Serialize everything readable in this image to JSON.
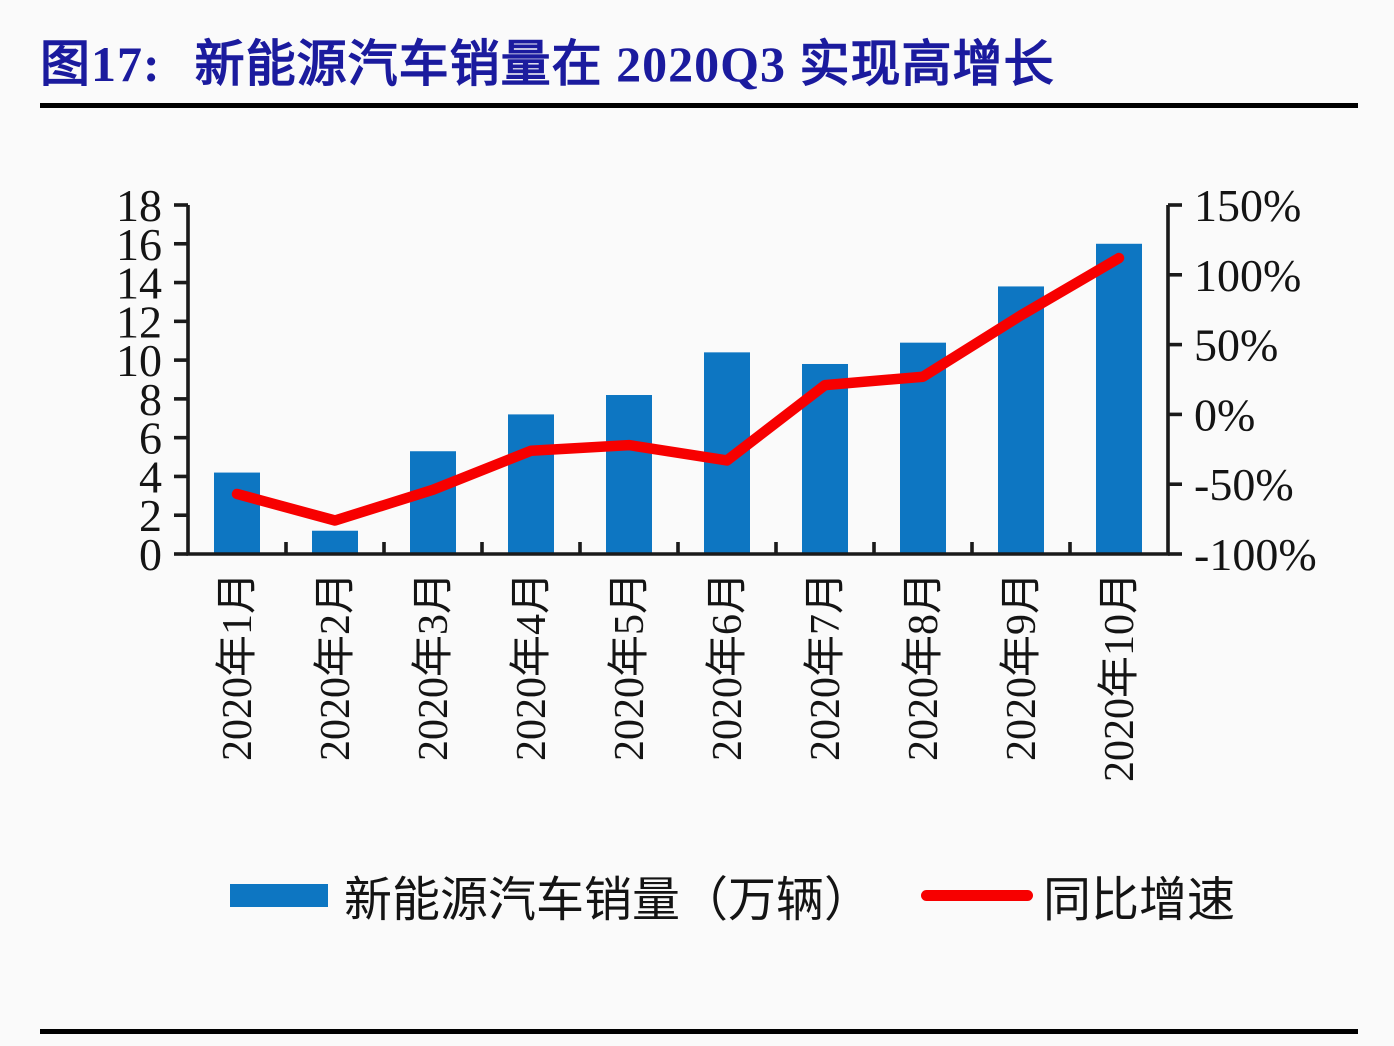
{
  "header": {
    "figure_label": "图17:",
    "title": "新能源汽车销量在 2020Q3 实现高增长"
  },
  "colors": {
    "background": "#fafafa",
    "title": "#1b1b9e",
    "bar": "#0d76c2",
    "line": "#f70000",
    "axis": "#1a1a1a",
    "divider": "#000000"
  },
  "chart_data": {
    "type": "bar+line combo",
    "categories": [
      "2020年1月",
      "2020年2月",
      "2020年3月",
      "2020年4月",
      "2020年5月",
      "2020年6月",
      "2020年7月",
      "2020年8月",
      "2020年9月",
      "2020年10月"
    ],
    "series": [
      {
        "name": "新能源汽车销量（万辆）",
        "type": "bar",
        "axis": "left",
        "values": [
          4.2,
          1.2,
          5.3,
          7.2,
          8.2,
          10.4,
          9.8,
          10.9,
          13.8,
          16.0
        ]
      },
      {
        "name": "同比增速",
        "type": "line",
        "axis": "right",
        "unit": "%",
        "values": [
          -57,
          -76,
          -54,
          -26,
          -22,
          -33,
          21,
          27,
          71,
          112
        ]
      }
    ],
    "left_axis": {
      "min": 0,
      "max": 18,
      "step": 2,
      "ticks": [
        0,
        2,
        4,
        6,
        8,
        10,
        12,
        14,
        16,
        18
      ],
      "tick_labels": [
        "0",
        "2",
        "4",
        "6",
        "8",
        "10",
        "12",
        "14",
        "16",
        "18"
      ]
    },
    "right_axis": {
      "min": -100,
      "max": 150,
      "step": 50,
      "ticks": [
        -100,
        -50,
        0,
        50,
        100,
        150
      ],
      "tick_labels": [
        "-100%",
        "-50%",
        "0%",
        "50%",
        "100%",
        "150%"
      ]
    },
    "grid": "off",
    "legend_position": "bottom"
  },
  "legend": {
    "items": [
      {
        "swatch": "bar",
        "label": "新能源汽车销量（万辆）"
      },
      {
        "swatch": "line",
        "label": "同比增速"
      }
    ]
  }
}
